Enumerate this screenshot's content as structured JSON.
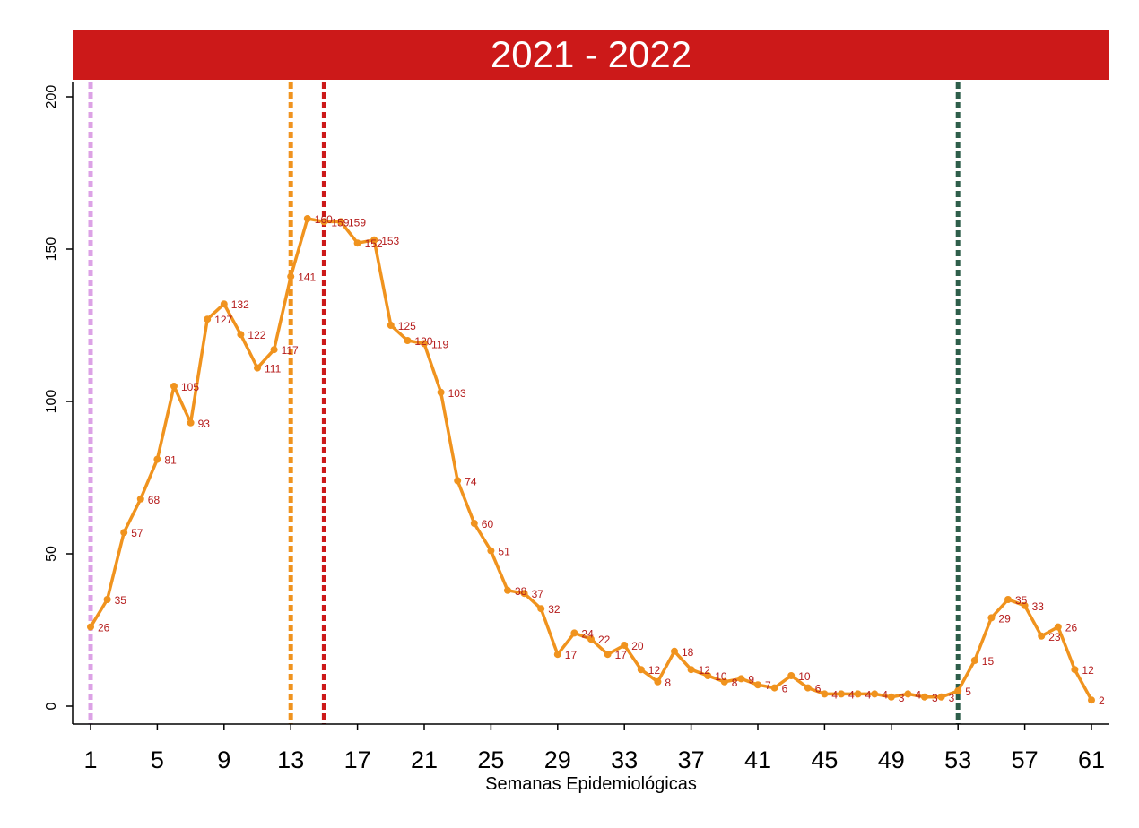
{
  "chart_data": {
    "type": "line",
    "title": "2021 - 2022",
    "xlabel": "Semanas Epidemiológicas",
    "ylabel": "",
    "xlim": [
      1,
      61
    ],
    "ylim": [
      0,
      200
    ],
    "x_ticks": [
      1,
      5,
      9,
      13,
      17,
      21,
      25,
      29,
      33,
      37,
      41,
      45,
      49,
      53,
      57,
      61
    ],
    "y_ticks": [
      0,
      50,
      100,
      150,
      200
    ],
    "x": [
      1,
      2,
      3,
      4,
      5,
      6,
      7,
      8,
      9,
      10,
      11,
      12,
      13,
      14,
      15,
      16,
      17,
      18,
      19,
      20,
      21,
      22,
      23,
      24,
      25,
      26,
      27,
      28,
      29,
      30,
      31,
      32,
      33,
      34,
      35,
      36,
      37,
      38,
      39,
      40,
      41,
      42,
      43,
      44,
      45,
      46,
      47,
      48,
      49,
      50,
      51,
      52,
      53,
      54,
      55,
      56,
      57,
      58,
      59,
      60,
      61
    ],
    "series": [
      {
        "color": "#f0931e",
        "values": [
          26,
          35,
          57,
          68,
          81,
          105,
          93,
          127,
          132,
          122,
          111,
          117,
          141,
          160,
          159,
          159,
          152,
          153,
          125,
          120,
          119,
          103,
          74,
          60,
          51,
          38,
          37,
          32,
          17,
          24,
          22,
          17,
          20,
          12,
          8,
          18,
          12,
          10,
          8,
          9,
          7,
          6,
          10,
          6,
          4,
          4,
          4,
          4,
          3,
          4,
          3,
          3,
          5,
          15,
          29,
          35,
          33,
          23,
          26,
          12,
          2
        ],
        "labels": [
          "26",
          "35",
          "57",
          "68",
          "81",
          "105",
          "93",
          "127",
          "132",
          "122",
          "111",
          "117",
          "141",
          "160",
          "159",
          "159",
          "152",
          "153",
          "125",
          "120",
          "119",
          "103",
          "74",
          "60",
          "51",
          "38",
          "37",
          "32",
          "17",
          "24",
          "22",
          "17",
          "20",
          "12",
          "8",
          "18",
          "12",
          "10",
          "8",
          "9",
          "7",
          "6",
          "10",
          "6",
          "4",
          "4",
          "4",
          "4",
          "3",
          "4",
          "3",
          "3",
          "5",
          "15",
          "29",
          "35",
          "33",
          "23",
          "26",
          "12",
          "2"
        ]
      }
    ],
    "vlines": [
      {
        "x": 1,
        "color": "#dca2e6"
      },
      {
        "x": 13,
        "color": "#f0931e"
      },
      {
        "x": 15,
        "color": "#cc1919"
      },
      {
        "x": 53,
        "color": "#2e5e4a"
      }
    ],
    "title_bar_color": "#cc1919",
    "data_label_color": "#b51c1c"
  }
}
